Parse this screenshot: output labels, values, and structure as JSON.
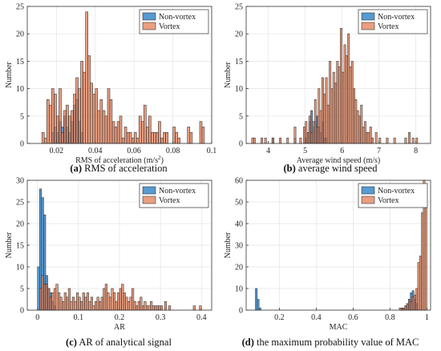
{
  "colors": {
    "non_vortex": "#4f95cf",
    "vortex": "#e1784f",
    "edge": "#2a2a2a"
  },
  "chart_data": [
    {
      "type": "bar",
      "caption_label": "(a)",
      "caption_text": " RMS of acceleration",
      "xlabel": "RMS of acceleration (m/s",
      "xlabel_sup": "2",
      "xlabel_end": ")",
      "ylabel": "Number",
      "xlim": [
        0.005,
        0.1
      ],
      "ylim": [
        0,
        25
      ],
      "xticks": [
        0.02,
        0.04,
        0.06,
        0.08,
        0.1
      ],
      "xtick_labels": [
        "0.02",
        "0.04",
        "0.06",
        "0.08",
        "0.1"
      ],
      "yticks": [
        0,
        5,
        10,
        15,
        20,
        25
      ],
      "legend_position": "top-right",
      "series": [
        {
          "name": "Non-vortex",
          "color_key": "non_vortex",
          "bin_width": 0.00125,
          "x": [
            0.0175,
            0.0188,
            0.02,
            0.0213,
            0.0225,
            0.0238,
            0.025,
            0.0263,
            0.0275,
            0.0288,
            0.03,
            0.0313,
            0.0325
          ],
          "values": [
            2,
            3,
            2,
            4,
            3,
            5,
            3,
            2,
            4,
            7,
            8,
            4,
            2
          ]
        },
        {
          "name": "Vortex",
          "color_key": "vortex",
          "bin_width": 0.00125,
          "x": [
            0.0125,
            0.0138,
            0.015,
            0.0163,
            0.0175,
            0.0188,
            0.02,
            0.0213,
            0.0225,
            0.0238,
            0.025,
            0.0263,
            0.0275,
            0.0288,
            0.03,
            0.0313,
            0.0325,
            0.0338,
            0.035,
            0.0363,
            0.0375,
            0.0388,
            0.04,
            0.0413,
            0.0425,
            0.0438,
            0.045,
            0.0463,
            0.0475,
            0.0488,
            0.05,
            0.0513,
            0.0525,
            0.0538,
            0.055,
            0.0563,
            0.0575,
            0.0588,
            0.06,
            0.0613,
            0.0625,
            0.0638,
            0.065,
            0.0663,
            0.0675,
            0.0688,
            0.07,
            0.0713,
            0.0725,
            0.0738,
            0.075,
            0.0763,
            0.0775,
            0.0788,
            0.08,
            0.0813,
            0.0825,
            0.0838,
            0.085,
            0.0863,
            0.0875,
            0.0888,
            0.09,
            0.0913,
            0.0925,
            0.0938,
            0.095
          ],
          "values": [
            2,
            1,
            8,
            7,
            10,
            9,
            5,
            10,
            2,
            6,
            7,
            5,
            6,
            9,
            12,
            10,
            15,
            13,
            24,
            16,
            11,
            9,
            10,
            6,
            8,
            6,
            5,
            10,
            8,
            4,
            3,
            4,
            5,
            1,
            3,
            2,
            2,
            1,
            2,
            1,
            5,
            4,
            7,
            3,
            5,
            2,
            2,
            2,
            4,
            1,
            2,
            2,
            0,
            0,
            3,
            2,
            1,
            0,
            0,
            0,
            3,
            2,
            0,
            0,
            0,
            4,
            3
          ]
        }
      ]
    },
    {
      "type": "bar",
      "caption_label": "(b)",
      "caption_text": " average wind speed",
      "xlabel": "Average wind speed (m/s)",
      "ylabel": "Number",
      "xlim": [
        3.4,
        8.4
      ],
      "ylim": [
        0,
        25
      ],
      "xticks": [
        4,
        5,
        6,
        7,
        8
      ],
      "xtick_labels": [
        "4",
        "5",
        "6",
        "7",
        "8"
      ],
      "yticks": [
        0,
        5,
        10,
        15,
        20,
        25
      ],
      "legend_position": "top-right",
      "series": [
        {
          "name": "Non-vortex",
          "color_key": "non_vortex",
          "bin_width": 0.05,
          "x": [
            4.1,
            4.7,
            5.0,
            5.05,
            5.1,
            5.15,
            5.2,
            5.25,
            5.3,
            5.35,
            5.4,
            5.45,
            5.5,
            5.55
          ],
          "values": [
            1,
            1,
            1,
            2,
            4,
            6,
            3,
            4,
            5,
            3,
            2,
            4,
            1,
            1
          ]
        },
        {
          "name": "Vortex",
          "color_key": "vortex",
          "bin_width": 0.05,
          "x": [
            3.55,
            3.6,
            3.8,
            3.9,
            4.1,
            4.3,
            4.5,
            4.7,
            4.85,
            4.95,
            5.0,
            5.05,
            5.1,
            5.15,
            5.2,
            5.25,
            5.3,
            5.35,
            5.4,
            5.45,
            5.5,
            5.55,
            5.6,
            5.65,
            5.7,
            5.75,
            5.8,
            5.85,
            5.9,
            5.95,
            6.0,
            6.05,
            6.1,
            6.15,
            6.2,
            6.25,
            6.3,
            6.35,
            6.4,
            6.45,
            6.5,
            6.55,
            6.6,
            6.65,
            6.7,
            6.75,
            6.8,
            6.9,
            7.0,
            7.2,
            7.4,
            7.7,
            7.8,
            7.9,
            8.0
          ],
          "values": [
            1,
            1,
            1,
            1,
            1,
            1,
            1,
            3,
            1,
            3,
            4,
            2,
            5,
            2,
            4,
            8,
            3,
            10,
            6,
            12,
            9,
            12,
            7,
            15,
            10,
            13,
            11,
            15,
            14,
            21,
            13,
            18,
            16,
            20,
            14,
            15,
            10,
            8,
            6,
            5,
            7,
            3,
            4,
            2,
            2,
            3,
            1,
            2,
            1,
            1,
            1,
            1,
            2,
            1,
            1
          ]
        }
      ]
    },
    {
      "type": "bar",
      "caption_label": "(c)",
      "caption_text": " AR of analytical signal",
      "xlabel": "AR",
      "ylabel": "Number",
      "xlim": [
        -0.025,
        0.425
      ],
      "ylim": [
        0,
        30
      ],
      "xticks": [
        0,
        0.1,
        0.2,
        0.3,
        0.4
      ],
      "xtick_labels": [
        "0",
        "0.1",
        "0.2",
        "0.3",
        "0.4"
      ],
      "yticks": [
        0,
        5,
        10,
        15,
        20,
        25,
        30
      ],
      "legend_position": "top-right",
      "series": [
        {
          "name": "Non-vortex",
          "color_key": "non_vortex",
          "bin_width": 0.005,
          "x": [
            0.0,
            0.005,
            0.01,
            0.015,
            0.02,
            0.025,
            0.03,
            0.035,
            0.04
          ],
          "values": [
            10,
            28,
            26,
            22,
            8,
            5,
            4,
            2,
            1
          ]
        },
        {
          "name": "Vortex",
          "color_key": "vortex",
          "bin_width": 0.005,
          "x": [
            0.005,
            0.01,
            0.015,
            0.02,
            0.025,
            0.03,
            0.035,
            0.04,
            0.045,
            0.05,
            0.055,
            0.06,
            0.065,
            0.07,
            0.075,
            0.08,
            0.085,
            0.09,
            0.095,
            0.1,
            0.105,
            0.11,
            0.115,
            0.12,
            0.125,
            0.13,
            0.135,
            0.14,
            0.145,
            0.15,
            0.155,
            0.16,
            0.165,
            0.17,
            0.175,
            0.18,
            0.185,
            0.19,
            0.195,
            0.2,
            0.205,
            0.21,
            0.215,
            0.22,
            0.225,
            0.23,
            0.235,
            0.24,
            0.245,
            0.25,
            0.255,
            0.26,
            0.265,
            0.27,
            0.275,
            0.28,
            0.285,
            0.29,
            0.295,
            0.3,
            0.31,
            0.32,
            0.38,
            0.395
          ],
          "values": [
            5,
            8,
            6,
            6,
            5,
            3,
            4,
            5,
            6,
            4,
            3,
            2,
            4,
            3,
            5,
            2,
            3,
            2,
            4,
            3,
            2,
            4,
            3,
            4,
            2,
            3,
            1,
            2,
            3,
            2,
            3,
            5,
            6,
            4,
            3,
            5,
            4,
            2,
            4,
            5,
            6,
            4,
            3,
            2,
            3,
            5,
            2,
            1,
            2,
            3,
            1,
            2,
            1,
            1,
            2,
            1,
            1,
            1,
            1,
            1,
            2,
            1,
            1,
            1
          ]
        }
      ]
    },
    {
      "type": "bar",
      "caption_label": "(d)",
      "caption_text": " the maximum probability value of MAC",
      "xlabel": "MAC",
      "ylabel": "Number",
      "xlim": [
        0.02,
        1.02
      ],
      "ylim": [
        0,
        60
      ],
      "xticks": [
        0.2,
        0.4,
        0.6,
        0.8,
        1
      ],
      "xtick_labels": [
        "0.2",
        "0.4",
        "0.6",
        "0.8",
        "1"
      ],
      "yticks": [
        0,
        10,
        20,
        30,
        40,
        50,
        60
      ],
      "legend_position": "top-right",
      "series": [
        {
          "name": "Non-vortex",
          "color_key": "non_vortex",
          "bin_width": 0.01,
          "x": [
            0.07,
            0.08,
            0.09,
            0.86,
            0.87,
            0.88,
            0.89,
            0.9,
            0.91,
            0.92,
            0.93,
            0.94
          ],
          "values": [
            10,
            5,
            1,
            1,
            1,
            2,
            3,
            5,
            8,
            9,
            5,
            3
          ]
        },
        {
          "name": "Vortex",
          "color_key": "vortex",
          "bin_width": 0.01,
          "x": [
            0.85,
            0.86,
            0.87,
            0.88,
            0.89,
            0.9,
            0.91,
            0.92,
            0.93,
            0.94,
            0.95,
            0.96,
            0.97,
            0.98,
            0.99
          ],
          "values": [
            1,
            1,
            1,
            2,
            3,
            5,
            4,
            6,
            7,
            10,
            22,
            25,
            45,
            60,
            54
          ]
        }
      ]
    }
  ]
}
